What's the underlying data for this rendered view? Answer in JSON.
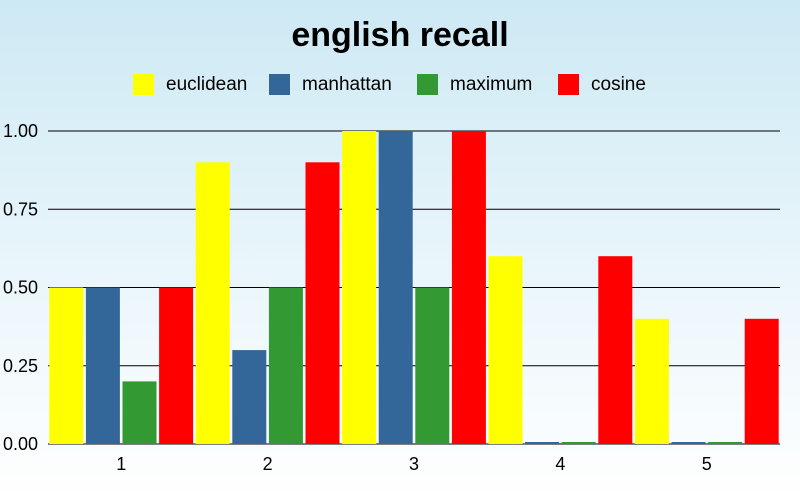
{
  "chart_data": {
    "type": "bar",
    "title": "english recall",
    "xlabel": "",
    "ylabel": "",
    "categories": [
      "1",
      "2",
      "3",
      "4",
      "5"
    ],
    "ylim": [
      0,
      1
    ],
    "yticks": [
      "0.00",
      "0.25",
      "0.50",
      "0.75",
      "1.00"
    ],
    "grid": true,
    "legend_position": "top",
    "series": [
      {
        "name": "euclidean",
        "color": "#ffff00",
        "values": [
          0.5,
          0.9,
          1.0,
          0.6,
          0.4
        ]
      },
      {
        "name": "manhattan",
        "color": "#336699",
        "values": [
          0.5,
          0.3,
          1.0,
          0.0,
          0.0
        ]
      },
      {
        "name": "maximum",
        "color": "#339933",
        "values": [
          0.2,
          0.5,
          0.5,
          0.0,
          0.0
        ]
      },
      {
        "name": "cosine",
        "color": "#ff0000",
        "values": [
          0.5,
          0.9,
          1.0,
          0.6,
          0.4
        ]
      }
    ]
  }
}
